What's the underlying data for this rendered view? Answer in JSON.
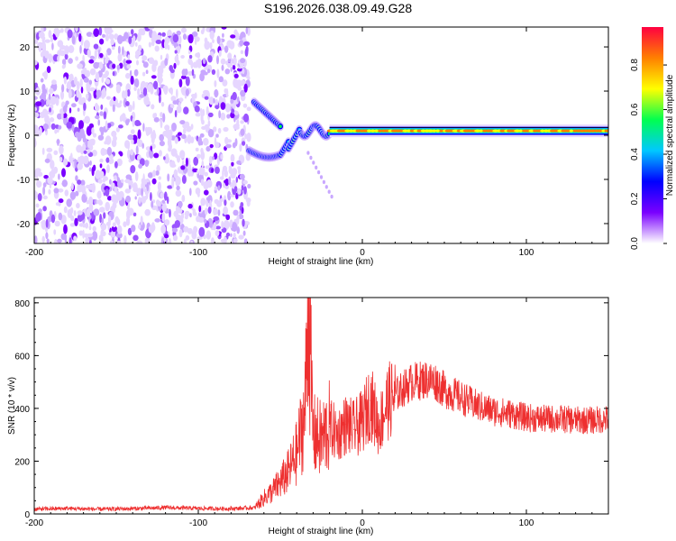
{
  "page_title": "S196.2026.038.09.49.G28",
  "chart_data": [
    {
      "type": "heatmap",
      "xlabel": "Height of straight line (km)",
      "ylabel": "Frequency (Hz)",
      "xlim": [
        -200,
        150
      ],
      "ylim": [
        -24.5,
        24.5
      ],
      "xticks": [
        -200,
        -100,
        0,
        100
      ],
      "yticks": [
        -20,
        -10,
        0,
        10,
        20
      ],
      "grid": false,
      "colorbar": {
        "label": "Normalized spectral amplitude",
        "range": [
          0,
          0.97
        ],
        "ticks": [
          "0.0",
          "0.2",
          "0.4",
          "0.6",
          "0.8"
        ],
        "colormap": [
          "#ffffff",
          "#7a00ff",
          "#0000ff",
          "#00c8ff",
          "#00ff50",
          "#ffff00",
          "#ff8000",
          "#ff0040"
        ]
      },
      "regions": [
        {
          "x_range": [
            -200,
            -69
          ],
          "freq_range": [
            -24.5,
            24.5
          ],
          "amplitude": 0.1,
          "pattern": "scattered noise"
        },
        {
          "x_range": [
            -66,
            -50
          ],
          "freq": 7.5,
          "amplitude": 0.45,
          "pattern": "descending track"
        },
        {
          "x_range": [
            -69,
            -45
          ],
          "freq": -3.5,
          "amplitude": 0.5,
          "pattern": "track"
        },
        {
          "x_range": [
            -45,
            -20
          ],
          "freq": 0,
          "amplitude": 0.5,
          "pattern": "converging tracks"
        },
        {
          "x_range": [
            -20,
            150
          ],
          "freq": 1,
          "amplitude": 0.85,
          "pattern": "stable carrier"
        }
      ]
    },
    {
      "type": "line",
      "xlabel": "Height of straight line (km)",
      "ylabel": "SNR (10 * v/v)",
      "xlim": [
        -200,
        150
      ],
      "ylim": [
        0,
        820
      ],
      "xticks": [
        -200,
        -100,
        0,
        100
      ],
      "yticks": [
        0,
        200,
        400,
        600,
        800
      ],
      "grid": false,
      "color": "#ee3030",
      "series": [
        {
          "x": [
            -200,
            -180,
            -160,
            -140,
            -120,
            -100,
            -80,
            -65,
            -60,
            -55,
            -50,
            -45,
            -40,
            -35,
            -33,
            -30,
            -25,
            -20,
            -15,
            -10,
            -5,
            0,
            5,
            10,
            15,
            20,
            30,
            40,
            45,
            50,
            60,
            70,
            80,
            90,
            100,
            110,
            120,
            130,
            140,
            150
          ],
          "y": [
            22,
            25,
            22,
            24,
            28,
            25,
            24,
            28,
            60,
            85,
            120,
            160,
            230,
            380,
            820,
            300,
            280,
            330,
            300,
            340,
            320,
            350,
            430,
            330,
            420,
            450,
            500,
            510,
            500,
            470,
            440,
            410,
            390,
            380,
            365,
            360,
            360,
            355,
            355,
            360
          ]
        }
      ]
    }
  ]
}
